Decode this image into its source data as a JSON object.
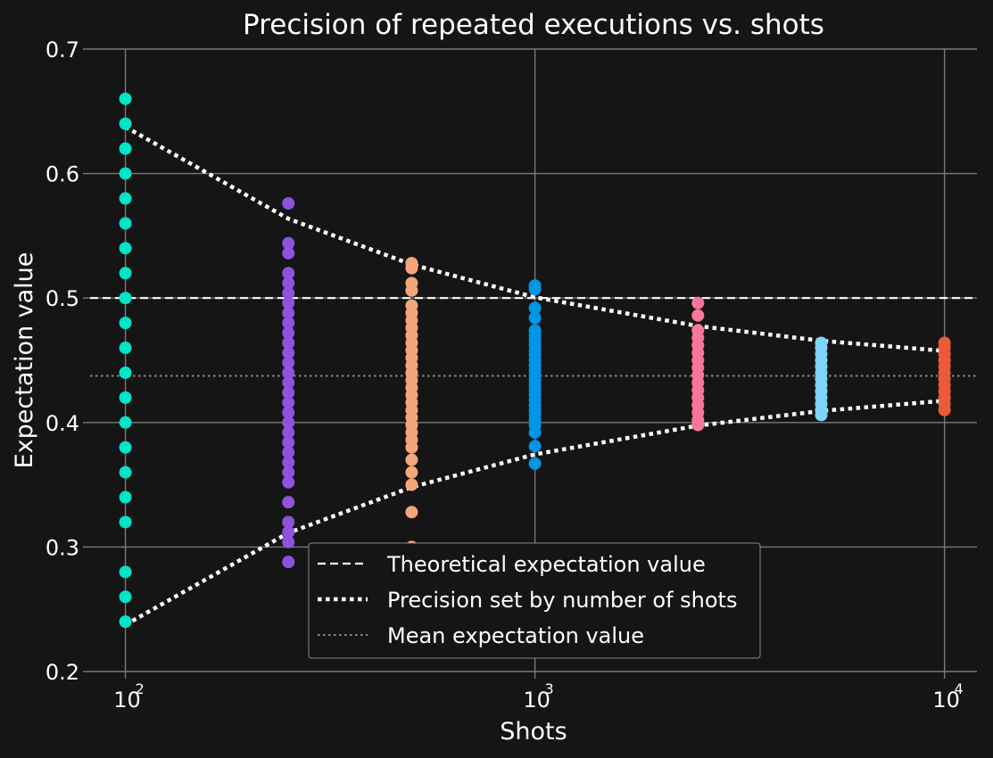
{
  "chart_data": {
    "type": "scatter",
    "title": "Precision of repeated executions vs. shots",
    "xlabel": "Shots",
    "ylabel": "Expectation value",
    "xscale": "log",
    "xlim": [
      82,
      12000
    ],
    "ylim": [
      0.2,
      0.7
    ],
    "yticks": [
      "0.2",
      "0.3",
      "0.4",
      "0.5",
      "0.6",
      "0.7"
    ],
    "xticks": [
      {
        "value": 100,
        "base": "10",
        "exp": "2"
      },
      {
        "value": 1000,
        "base": "10",
        "exp": "3"
      },
      {
        "value": 10000,
        "base": "10",
        "exp": "4"
      }
    ],
    "grid": true,
    "legend_position": "lower-center",
    "theoretical_value": 0.5,
    "mean_value": 0.4375,
    "precision_bounds": {
      "x": [
        100,
        250,
        500,
        1000,
        2500,
        5000,
        10000
      ],
      "upper": [
        0.6375,
        0.5637,
        0.5269,
        0.5006,
        0.4775,
        0.4657,
        0.4575
      ],
      "lower": [
        0.2375,
        0.3113,
        0.3481,
        0.3744,
        0.3975,
        0.4093,
        0.4175
      ]
    },
    "series": [
      {
        "x": 100,
        "color": "#00e5c7",
        "values": [
          0.66,
          0.64,
          0.62,
          0.6,
          0.58,
          0.56,
          0.54,
          0.52,
          0.5,
          0.48,
          0.46,
          0.44,
          0.42,
          0.4,
          0.38,
          0.36,
          0.34,
          0.32,
          0.28,
          0.26,
          0.24
        ]
      },
      {
        "x": 250,
        "color": "#8f52de",
        "values": [
          0.576,
          0.544,
          0.536,
          0.52,
          0.512,
          0.504,
          0.496,
          0.488,
          0.48,
          0.472,
          0.464,
          0.456,
          0.448,
          0.44,
          0.432,
          0.424,
          0.416,
          0.408,
          0.4,
          0.392,
          0.384,
          0.376,
          0.368,
          0.36,
          0.352,
          0.336,
          0.32,
          0.312,
          0.304,
          0.288
        ]
      },
      {
        "x": 500,
        "color": "#f5a57a",
        "values": [
          0.528,
          0.524,
          0.512,
          0.506,
          0.494,
          0.488,
          0.482,
          0.476,
          0.47,
          0.464,
          0.458,
          0.452,
          0.446,
          0.44,
          0.434,
          0.428,
          0.422,
          0.416,
          0.41,
          0.404,
          0.398,
          0.392,
          0.386,
          0.38,
          0.37,
          0.36,
          0.35,
          0.328,
          0.3
        ]
      },
      {
        "x": 1000,
        "color": "#0095e6",
        "values": [
          0.51,
          0.507,
          0.492,
          0.484,
          0.474,
          0.47,
          0.466,
          0.462,
          0.458,
          0.454,
          0.45,
          0.446,
          0.442,
          0.438,
          0.434,
          0.43,
          0.426,
          0.422,
          0.418,
          0.414,
          0.41,
          0.406,
          0.402,
          0.398,
          0.392,
          0.381,
          0.367
        ]
      },
      {
        "x": 2500,
        "color": "#f6779b",
        "values": [
          0.496,
          0.486,
          0.474,
          0.468,
          0.462,
          0.456,
          0.45,
          0.444,
          0.438,
          0.432,
          0.426,
          0.42,
          0.414,
          0.408,
          0.402,
          0.398
        ]
      },
      {
        "x": 5000,
        "color": "#7fd3f6",
        "values": [
          0.464,
          0.46,
          0.455,
          0.45,
          0.445,
          0.44,
          0.435,
          0.43,
          0.425,
          0.42,
          0.415,
          0.41,
          0.406
        ]
      },
      {
        "x": 10000,
        "color": "#ed5a3a",
        "values": [
          0.464,
          0.46,
          0.455,
          0.45,
          0.445,
          0.44,
          0.435,
          0.43,
          0.425,
          0.42,
          0.415,
          0.41
        ]
      }
    ],
    "legend": [
      {
        "label": "Theoretical expectation value",
        "style": "dashed"
      },
      {
        "label": "Precision set by number of shots",
        "style": "dotted-thick"
      },
      {
        "label": "Mean expectation value",
        "style": "dotted-thin"
      }
    ]
  }
}
